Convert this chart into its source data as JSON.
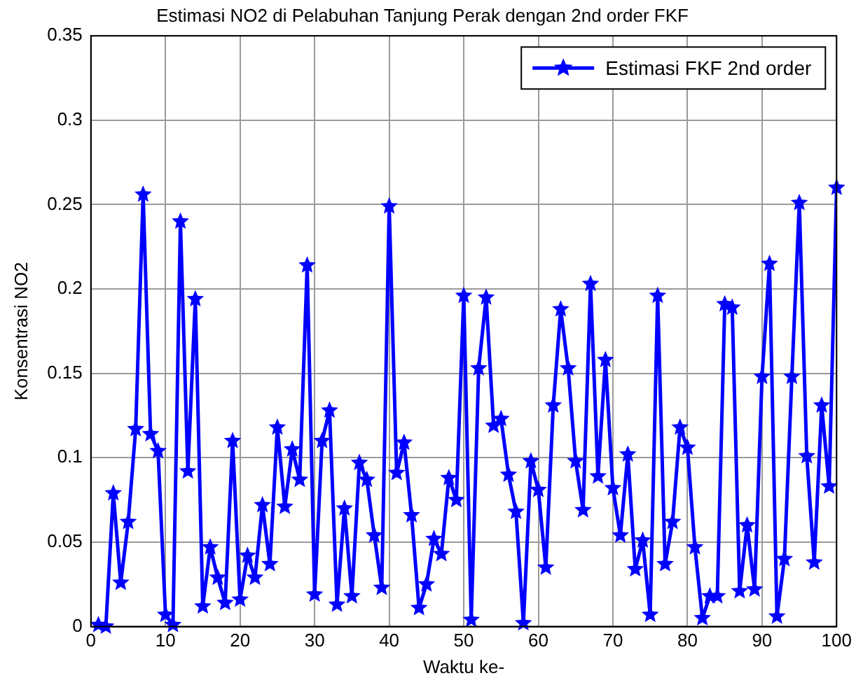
{
  "chart_data": {
    "type": "line",
    "title": "Estimasi NO2 di Pelabuhan Tanjung Perak dengan 2nd order FKF",
    "xlabel": "Waktu ke-",
    "ylabel": "Konsentrasi NO2",
    "x": [
      1,
      2,
      3,
      4,
      5,
      6,
      7,
      8,
      9,
      10,
      11,
      12,
      13,
      14,
      15,
      16,
      17,
      18,
      19,
      20,
      21,
      22,
      23,
      24,
      25,
      26,
      27,
      28,
      29,
      30,
      31,
      32,
      33,
      34,
      35,
      36,
      37,
      38,
      39,
      40,
      41,
      42,
      43,
      44,
      45,
      46,
      47,
      48,
      49,
      50,
      51,
      52,
      53,
      54,
      55,
      56,
      57,
      58,
      59,
      60,
      61,
      62,
      63,
      64,
      65,
      66,
      67,
      68,
      69,
      70,
      71,
      72,
      73,
      74,
      75,
      76,
      77,
      78,
      79,
      80,
      81,
      82,
      83,
      84,
      85,
      86,
      87,
      88,
      89,
      90,
      91,
      92,
      93,
      94,
      95,
      96,
      97,
      98,
      99,
      100
    ],
    "series": [
      {
        "name": "Estimasi FKF 2nd order",
        "color": "#0000ff",
        "values": [
          0.001,
          0.0,
          0.079,
          0.026,
          0.062,
          0.117,
          0.256,
          0.114,
          0.104,
          0.007,
          0.001,
          0.24,
          0.092,
          0.194,
          0.012,
          0.047,
          0.029,
          0.014,
          0.11,
          0.016,
          0.042,
          0.029,
          0.072,
          0.037,
          0.118,
          0.071,
          0.105,
          0.087,
          0.214,
          0.019,
          0.11,
          0.128,
          0.013,
          0.07,
          0.018,
          0.097,
          0.087,
          0.054,
          0.023,
          0.249,
          0.091,
          0.109,
          0.066,
          0.011,
          0.025,
          0.052,
          0.043,
          0.088,
          0.075,
          0.196,
          0.004,
          0.153,
          0.195,
          0.119,
          0.123,
          0.09,
          0.068,
          0.002,
          0.098,
          0.081,
          0.035,
          0.131,
          0.188,
          0.153,
          0.098,
          0.069,
          0.203,
          0.089,
          0.158,
          0.082,
          0.054,
          0.102,
          0.034,
          0.051,
          0.007,
          0.196,
          0.037,
          0.062,
          0.118,
          0.106,
          0.047,
          0.005,
          0.018,
          0.018,
          0.191,
          0.189,
          0.021,
          0.06,
          0.022,
          0.148,
          0.215,
          0.006,
          0.04,
          0.148,
          0.251,
          0.101,
          0.038,
          0.131,
          0.083,
          0.26
        ]
      }
    ],
    "xlim": [
      0,
      100
    ],
    "xticks": [
      0,
      10,
      20,
      30,
      40,
      50,
      60,
      70,
      80,
      90,
      100
    ],
    "ylim": [
      0,
      0.35
    ],
    "yticks": [
      0,
      0.05,
      0.1,
      0.15,
      0.2,
      0.25,
      0.3,
      0.35
    ],
    "grid": true,
    "legend": "top right",
    "marker": "star",
    "line_style": "solid"
  }
}
